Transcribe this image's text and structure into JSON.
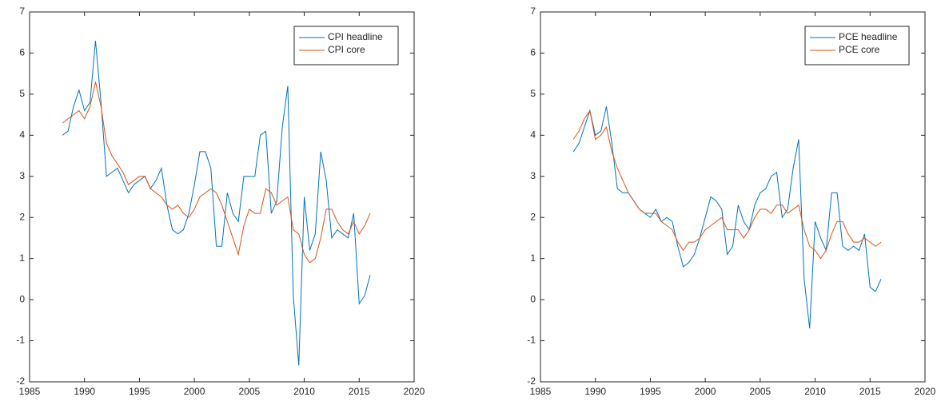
{
  "chart_data": [
    {
      "type": "line",
      "x": [
        1988,
        1988.5,
        1989,
        1989.5,
        1990,
        1990.5,
        1991,
        1991.5,
        1992,
        1992.5,
        1993,
        1993.5,
        1994,
        1994.5,
        1995,
        1995.5,
        1996,
        1996.5,
        1997,
        1997.5,
        1998,
        1998.5,
        1999,
        1999.5,
        2000,
        2000.5,
        2001,
        2001.5,
        2002,
        2002.5,
        2003,
        2003.5,
        2004,
        2004.5,
        2005,
        2005.5,
        2006,
        2006.5,
        2007,
        2007.5,
        2008,
        2008.5,
        2009,
        2009.5,
        2010,
        2010.5,
        2011,
        2011.5,
        2012,
        2012.5,
        2013,
        2013.5,
        2014,
        2014.5,
        2015,
        2015.5,
        2016
      ],
      "series": [
        {
          "name": "CPI headline",
          "color": "#0072bd",
          "values": [
            4.0,
            4.1,
            4.7,
            5.1,
            4.6,
            4.8,
            6.3,
            4.8,
            3.0,
            3.1,
            3.2,
            2.9,
            2.6,
            2.8,
            2.9,
            3.0,
            2.7,
            2.9,
            3.2,
            2.3,
            1.7,
            1.6,
            1.7,
            2.1,
            2.8,
            3.6,
            3.6,
            3.2,
            1.3,
            1.3,
            2.6,
            2.1,
            1.9,
            3.0,
            3.0,
            3.0,
            4.0,
            4.1,
            2.1,
            2.4,
            4.2,
            5.2,
            0.1,
            -1.6,
            2.5,
            1.2,
            1.6,
            3.6,
            2.9,
            1.5,
            1.7,
            1.6,
            1.5,
            2.1,
            -0.1,
            0.1,
            0.6
          ]
        },
        {
          "name": "CPI core",
          "color": "#d95319",
          "values": [
            4.3,
            4.4,
            4.5,
            4.6,
            4.4,
            4.7,
            5.3,
            4.7,
            3.8,
            3.5,
            3.3,
            3.1,
            2.8,
            2.9,
            3.0,
            3.0,
            2.7,
            2.6,
            2.5,
            2.3,
            2.2,
            2.3,
            2.1,
            2.0,
            2.2,
            2.5,
            2.6,
            2.7,
            2.6,
            2.3,
            1.9,
            1.5,
            1.1,
            1.8,
            2.2,
            2.1,
            2.1,
            2.7,
            2.6,
            2.3,
            2.4,
            2.5,
            1.7,
            1.6,
            1.1,
            0.9,
            1.0,
            1.5,
            2.2,
            2.2,
            1.9,
            1.7,
            1.6,
            1.9,
            1.6,
            1.8,
            2.1
          ]
        }
      ],
      "xlim": [
        1985,
        2020
      ],
      "xticks": [
        1985,
        1990,
        1995,
        2000,
        2005,
        2010,
        2015,
        2020
      ],
      "ylim": [
        -2,
        7
      ],
      "yticks": [
        -2,
        -1,
        0,
        1,
        2,
        3,
        4,
        5,
        6,
        7
      ],
      "legend": "northeast"
    },
    {
      "type": "line",
      "x": [
        1988,
        1988.5,
        1989,
        1989.5,
        1990,
        1990.5,
        1991,
        1991.5,
        1992,
        1992.5,
        1993,
        1993.5,
        1994,
        1994.5,
        1995,
        1995.5,
        1996,
        1996.5,
        1997,
        1997.5,
        1998,
        1998.5,
        1999,
        1999.5,
        2000,
        2000.5,
        2001,
        2001.5,
        2002,
        2002.5,
        2003,
        2003.5,
        2004,
        2004.5,
        2005,
        2005.5,
        2006,
        2006.5,
        2007,
        2007.5,
        2008,
        2008.5,
        2009,
        2009.5,
        2010,
        2010.5,
        2011,
        2011.5,
        2012,
        2012.5,
        2013,
        2013.5,
        2014,
        2014.5,
        2015,
        2015.5,
        2016
      ],
      "series": [
        {
          "name": "PCE headline",
          "color": "#0072bd",
          "values": [
            3.6,
            3.8,
            4.2,
            4.6,
            4.0,
            4.1,
            4.7,
            3.8,
            2.7,
            2.6,
            2.6,
            2.4,
            2.2,
            2.1,
            2.0,
            2.2,
            1.9,
            2.0,
            1.9,
            1.3,
            0.8,
            0.9,
            1.1,
            1.5,
            2.0,
            2.5,
            2.4,
            2.2,
            1.1,
            1.3,
            2.3,
            1.9,
            1.7,
            2.3,
            2.6,
            2.7,
            3.0,
            3.1,
            2.0,
            2.2,
            3.2,
            3.9,
            0.5,
            -0.7,
            1.9,
            1.5,
            1.2,
            2.6,
            2.6,
            1.3,
            1.2,
            1.3,
            1.2,
            1.6,
            0.3,
            0.2,
            0.5
          ]
        },
        {
          "name": "PCE core",
          "color": "#d95319",
          "values": [
            3.9,
            4.1,
            4.4,
            4.6,
            3.9,
            4.0,
            4.2,
            3.6,
            3.2,
            2.9,
            2.6,
            2.4,
            2.2,
            2.1,
            2.1,
            2.1,
            1.9,
            1.8,
            1.7,
            1.4,
            1.2,
            1.4,
            1.4,
            1.5,
            1.7,
            1.8,
            1.9,
            2.0,
            1.7,
            1.7,
            1.7,
            1.5,
            1.7,
            2.0,
            2.2,
            2.2,
            2.1,
            2.3,
            2.3,
            2.1,
            2.2,
            2.3,
            1.7,
            1.3,
            1.2,
            1.0,
            1.2,
            1.6,
            1.9,
            1.9,
            1.6,
            1.4,
            1.4,
            1.5,
            1.4,
            1.3,
            1.4
          ]
        }
      ],
      "xlim": [
        1985,
        2020
      ],
      "xticks": [
        1985,
        1990,
        1995,
        2000,
        2005,
        2010,
        2015,
        2020
      ],
      "ylim": [
        -2,
        7
      ],
      "yticks": [
        -2,
        -1,
        0,
        1,
        2,
        3,
        4,
        5,
        6,
        7
      ],
      "legend": "northeast"
    }
  ]
}
